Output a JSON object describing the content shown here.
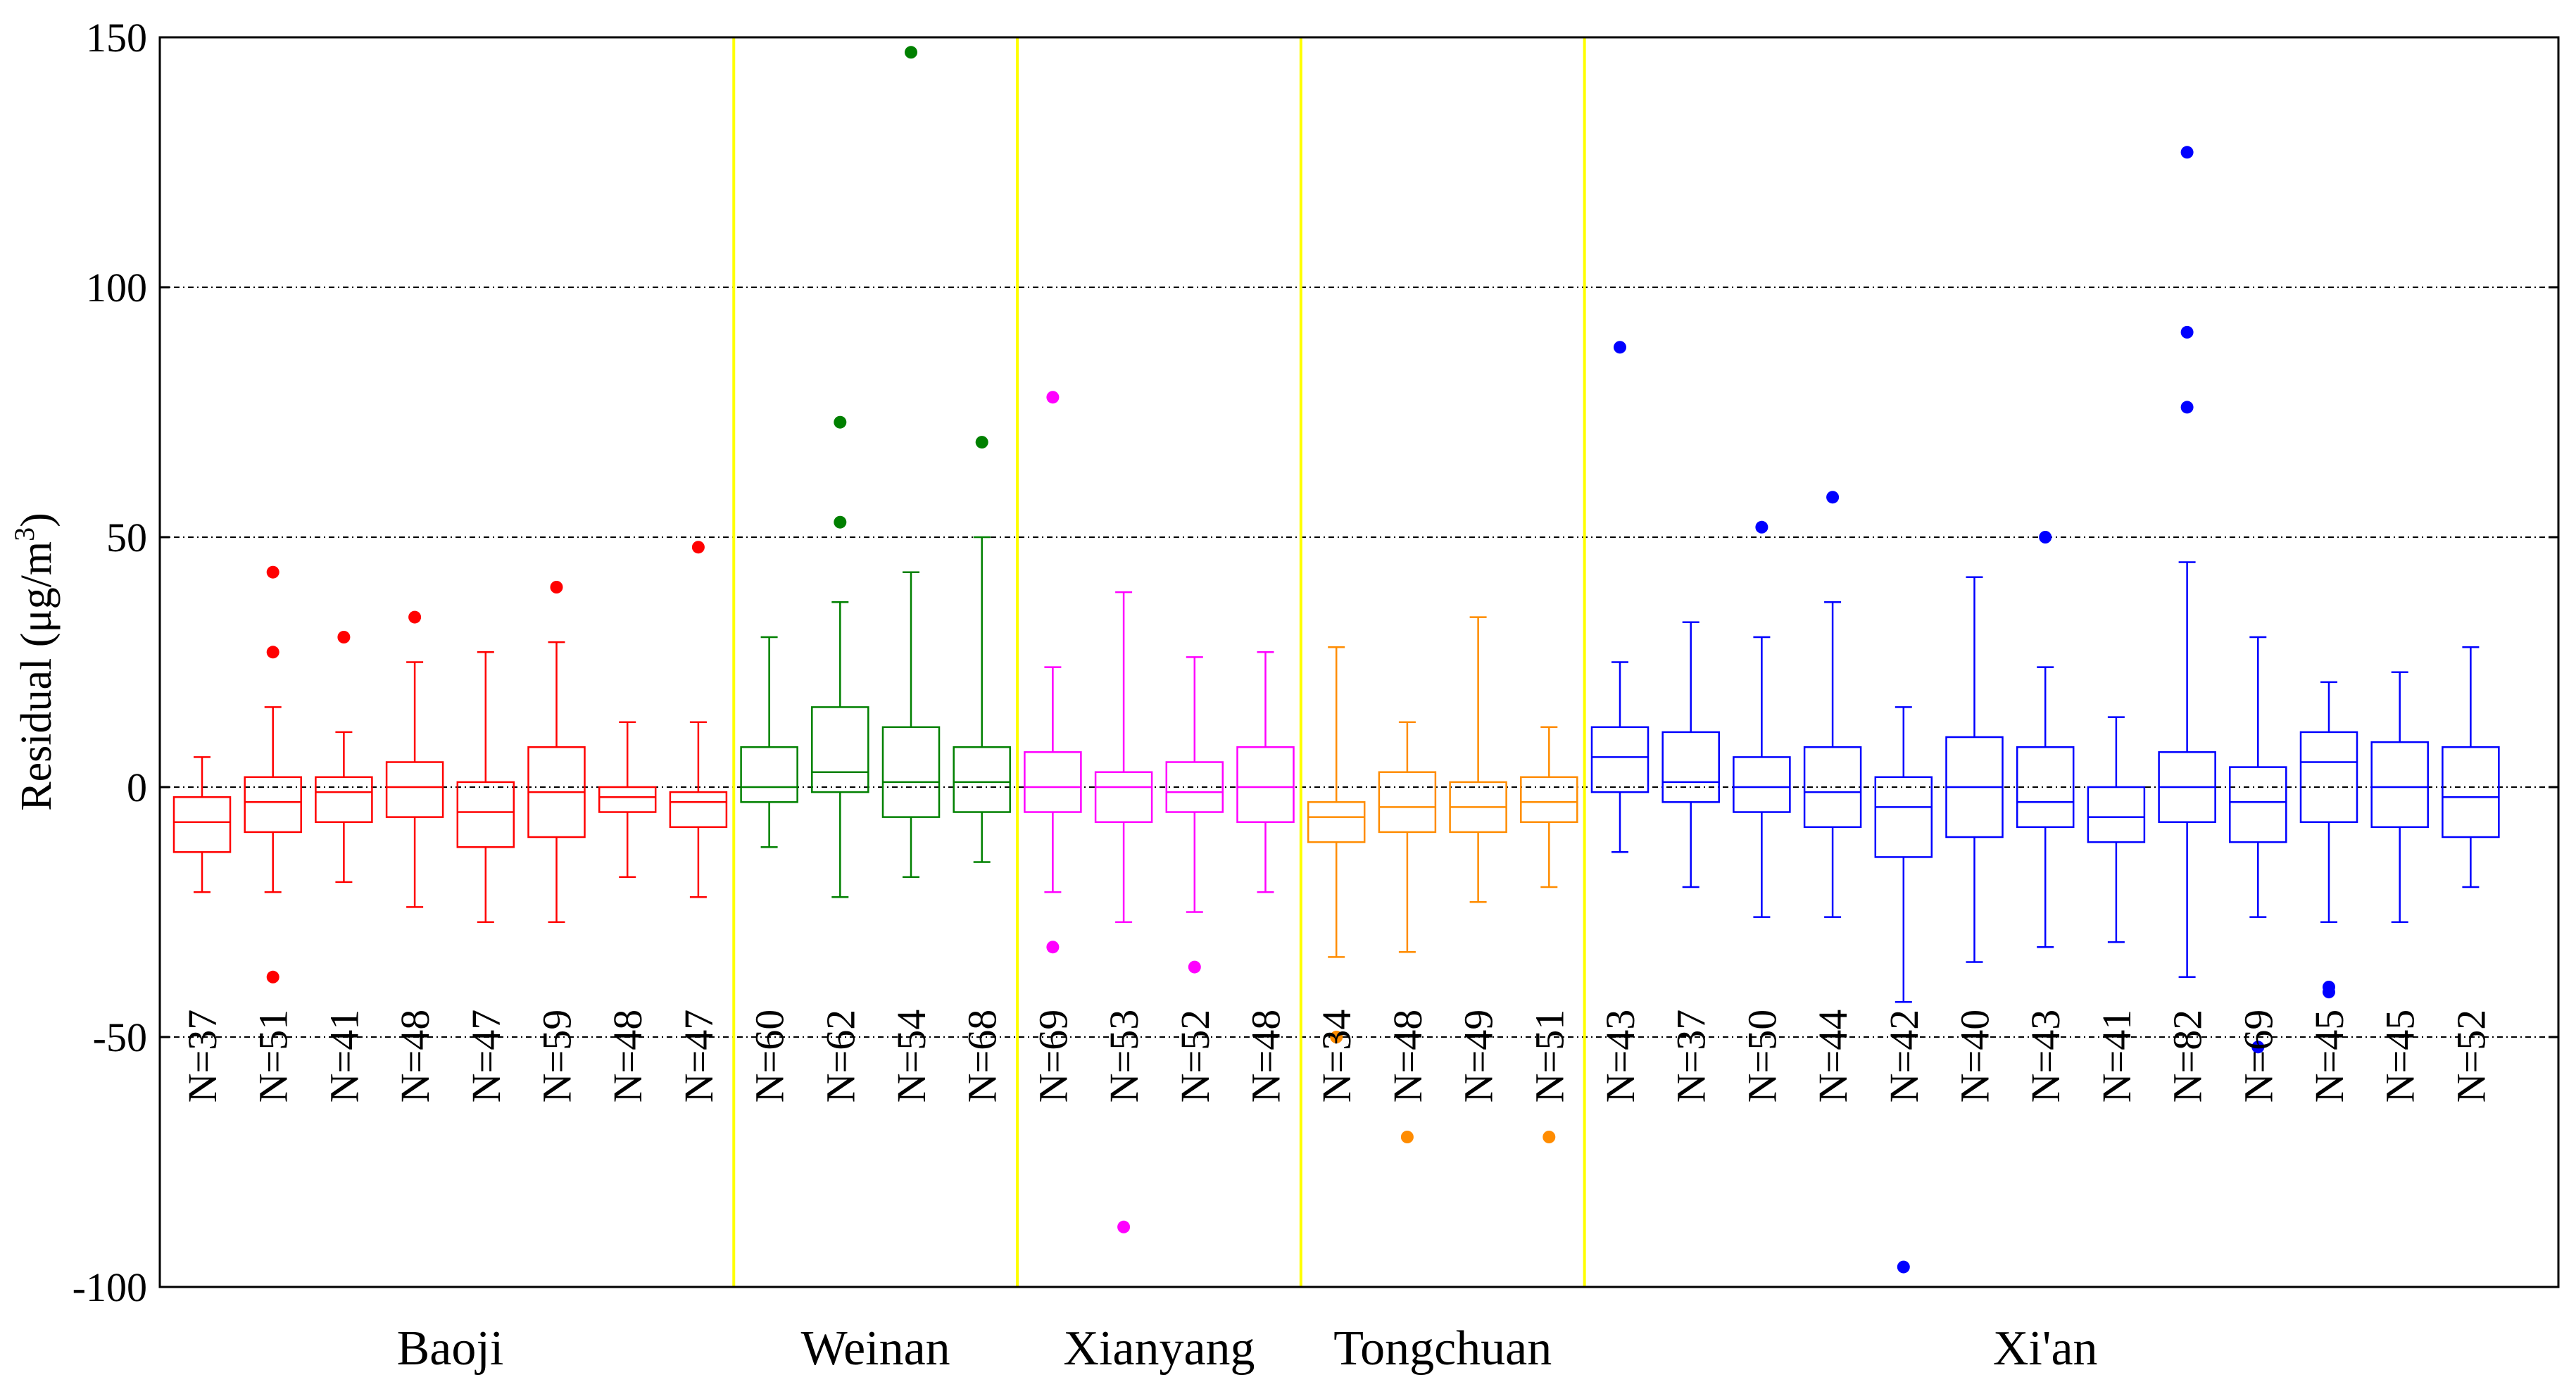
{
  "chart_data": {
    "type": "boxplot",
    "title": "",
    "xlabel": "",
    "ylabel": "Residual (μg/m",
    "ylabel_superscript": "3",
    "ylabel_suffix": ")",
    "ylim": [
      -100,
      150
    ],
    "yticks": [
      -100,
      -50,
      0,
      50,
      100,
      150
    ],
    "gridlines": [
      -50,
      0,
      50,
      100
    ],
    "groups": [
      {
        "name": "Baoji",
        "color": "#ff0000",
        "count": 8
      },
      {
        "name": "Weinan",
        "color": "#008000",
        "count": 4
      },
      {
        "name": "Xianyang",
        "color": "#ff00ff",
        "count": 4
      },
      {
        "name": "Tongchuan",
        "color": "#ff8c00",
        "count": 4
      },
      {
        "name": "Xi'an",
        "color": "#0000ff",
        "count": 13
      }
    ],
    "separator_color": "#ffff00",
    "boxes": [
      {
        "group": 0,
        "label": "N=37",
        "whislo": -21,
        "q1": -13,
        "med": -7,
        "q3": -2,
        "whishi": 6,
        "fliers": []
      },
      {
        "group": 0,
        "label": "N=51",
        "whislo": -21,
        "q1": -9,
        "med": -3,
        "q3": 2,
        "whishi": 16,
        "fliers": [
          43,
          27,
          -38
        ]
      },
      {
        "group": 0,
        "label": "N=41",
        "whislo": -19,
        "q1": -7,
        "med": -1,
        "q3": 2,
        "whishi": 11,
        "fliers": [
          30
        ]
      },
      {
        "group": 0,
        "label": "N=48",
        "whislo": -24,
        "q1": -6,
        "med": 0,
        "q3": 5,
        "whishi": 25,
        "fliers": [
          34
        ]
      },
      {
        "group": 0,
        "label": "N=47",
        "whislo": -27,
        "q1": -12,
        "med": -5,
        "q3": 1,
        "whishi": 27,
        "fliers": []
      },
      {
        "group": 0,
        "label": "N=59",
        "whislo": -27,
        "q1": -10,
        "med": -1,
        "q3": 8,
        "whishi": 29,
        "fliers": [
          40
        ]
      },
      {
        "group": 0,
        "label": "N=48",
        "whislo": -18,
        "q1": -5,
        "med": -2,
        "q3": 0,
        "whishi": 13,
        "fliers": []
      },
      {
        "group": 0,
        "label": "N=47",
        "whislo": -22,
        "q1": -8,
        "med": -3,
        "q3": -1,
        "whishi": 13,
        "fliers": [
          48
        ]
      },
      {
        "group": 1,
        "label": "N=60",
        "whislo": -12,
        "q1": -3,
        "med": 0,
        "q3": 8,
        "whishi": 30,
        "fliers": []
      },
      {
        "group": 1,
        "label": "N=62",
        "whislo": -22,
        "q1": -1,
        "med": 3,
        "q3": 16,
        "whishi": 37,
        "fliers": [
          73,
          53
        ]
      },
      {
        "group": 1,
        "label": "N=54",
        "whislo": -18,
        "q1": -6,
        "med": 1,
        "q3": 12,
        "whishi": 43,
        "fliers": [
          147
        ]
      },
      {
        "group": 1,
        "label": "N=68",
        "whislo": -15,
        "q1": -5,
        "med": 1,
        "q3": 8,
        "whishi": 50,
        "fliers": [
          69
        ]
      },
      {
        "group": 2,
        "label": "N=69",
        "whislo": -21,
        "q1": -5,
        "med": 0,
        "q3": 7,
        "whishi": 24,
        "fliers": [
          78,
          -32
        ]
      },
      {
        "group": 2,
        "label": "N=53",
        "whislo": -27,
        "q1": -7,
        "med": 0,
        "q3": 3,
        "whishi": 39,
        "fliers": [
          -88
        ]
      },
      {
        "group": 2,
        "label": "N=52",
        "whislo": -25,
        "q1": -5,
        "med": -1,
        "q3": 5,
        "whishi": 26,
        "fliers": [
          -36
        ]
      },
      {
        "group": 2,
        "label": "N=48",
        "whislo": -21,
        "q1": -7,
        "med": 0,
        "q3": 8,
        "whishi": 27,
        "fliers": []
      },
      {
        "group": 3,
        "label": "N=34",
        "whislo": -34,
        "q1": -11,
        "med": -6,
        "q3": -3,
        "whishi": 28,
        "fliers": [
          -50
        ]
      },
      {
        "group": 3,
        "label": "N=48",
        "whislo": -33,
        "q1": -9,
        "med": -4,
        "q3": 3,
        "whishi": 13,
        "fliers": [
          -70
        ]
      },
      {
        "group": 3,
        "label": "N=49",
        "whislo": -23,
        "q1": -9,
        "med": -4,
        "q3": 1,
        "whishi": 34,
        "fliers": []
      },
      {
        "group": 3,
        "label": "N=51",
        "whislo": -20,
        "q1": -7,
        "med": -3,
        "q3": 2,
        "whishi": 12,
        "fliers": [
          -70
        ]
      },
      {
        "group": 4,
        "label": "N=43",
        "whislo": -13,
        "q1": -1,
        "med": 6,
        "q3": 12,
        "whishi": 25,
        "fliers": [
          88
        ]
      },
      {
        "group": 4,
        "label": "N=37",
        "whislo": -20,
        "q1": -3,
        "med": 1,
        "q3": 11,
        "whishi": 33,
        "fliers": []
      },
      {
        "group": 4,
        "label": "N=50",
        "whislo": -26,
        "q1": -5,
        "med": 0,
        "q3": 6,
        "whishi": 30,
        "fliers": [
          52
        ]
      },
      {
        "group": 4,
        "label": "N=44",
        "whislo": -26,
        "q1": -8,
        "med": -1,
        "q3": 8,
        "whishi": 37,
        "fliers": [
          58
        ]
      },
      {
        "group": 4,
        "label": "N=42",
        "whislo": -43,
        "q1": -14,
        "med": -4,
        "q3": 2,
        "whishi": 16,
        "fliers": [
          -96
        ]
      },
      {
        "group": 4,
        "label": "N=40",
        "whislo": -35,
        "q1": -10,
        "med": 0,
        "q3": 10,
        "whishi": 42,
        "fliers": []
      },
      {
        "group": 4,
        "label": "N=43",
        "whislo": -32,
        "q1": -8,
        "med": -3,
        "q3": 8,
        "whishi": 24,
        "fliers": [
          50
        ]
      },
      {
        "group": 4,
        "label": "N=41",
        "whislo": -31,
        "q1": -11,
        "med": -6,
        "q3": 0,
        "whishi": 14,
        "fliers": []
      },
      {
        "group": 4,
        "label": "N=82",
        "whislo": -38,
        "q1": -7,
        "med": 0,
        "q3": 7,
        "whishi": 45,
        "fliers": [
          127,
          91,
          76
        ]
      },
      {
        "group": 4,
        "label": "N=69",
        "whislo": -26,
        "q1": -11,
        "med": -3,
        "q3": 4,
        "whishi": 30,
        "fliers": [
          -52
        ]
      },
      {
        "group": 4,
        "label": "N=45",
        "whislo": -27,
        "q1": -7,
        "med": 5,
        "q3": 11,
        "whishi": 21,
        "fliers": [
          -40,
          -41
        ]
      },
      {
        "group": 4,
        "label": "N=45",
        "whislo": -27,
        "q1": -8,
        "med": 0,
        "q3": 9,
        "whishi": 23,
        "fliers": []
      },
      {
        "group": 4,
        "label": "N=52",
        "whislo": -20,
        "q1": -10,
        "med": -2,
        "q3": 8,
        "whishi": 28,
        "fliers": []
      }
    ]
  }
}
